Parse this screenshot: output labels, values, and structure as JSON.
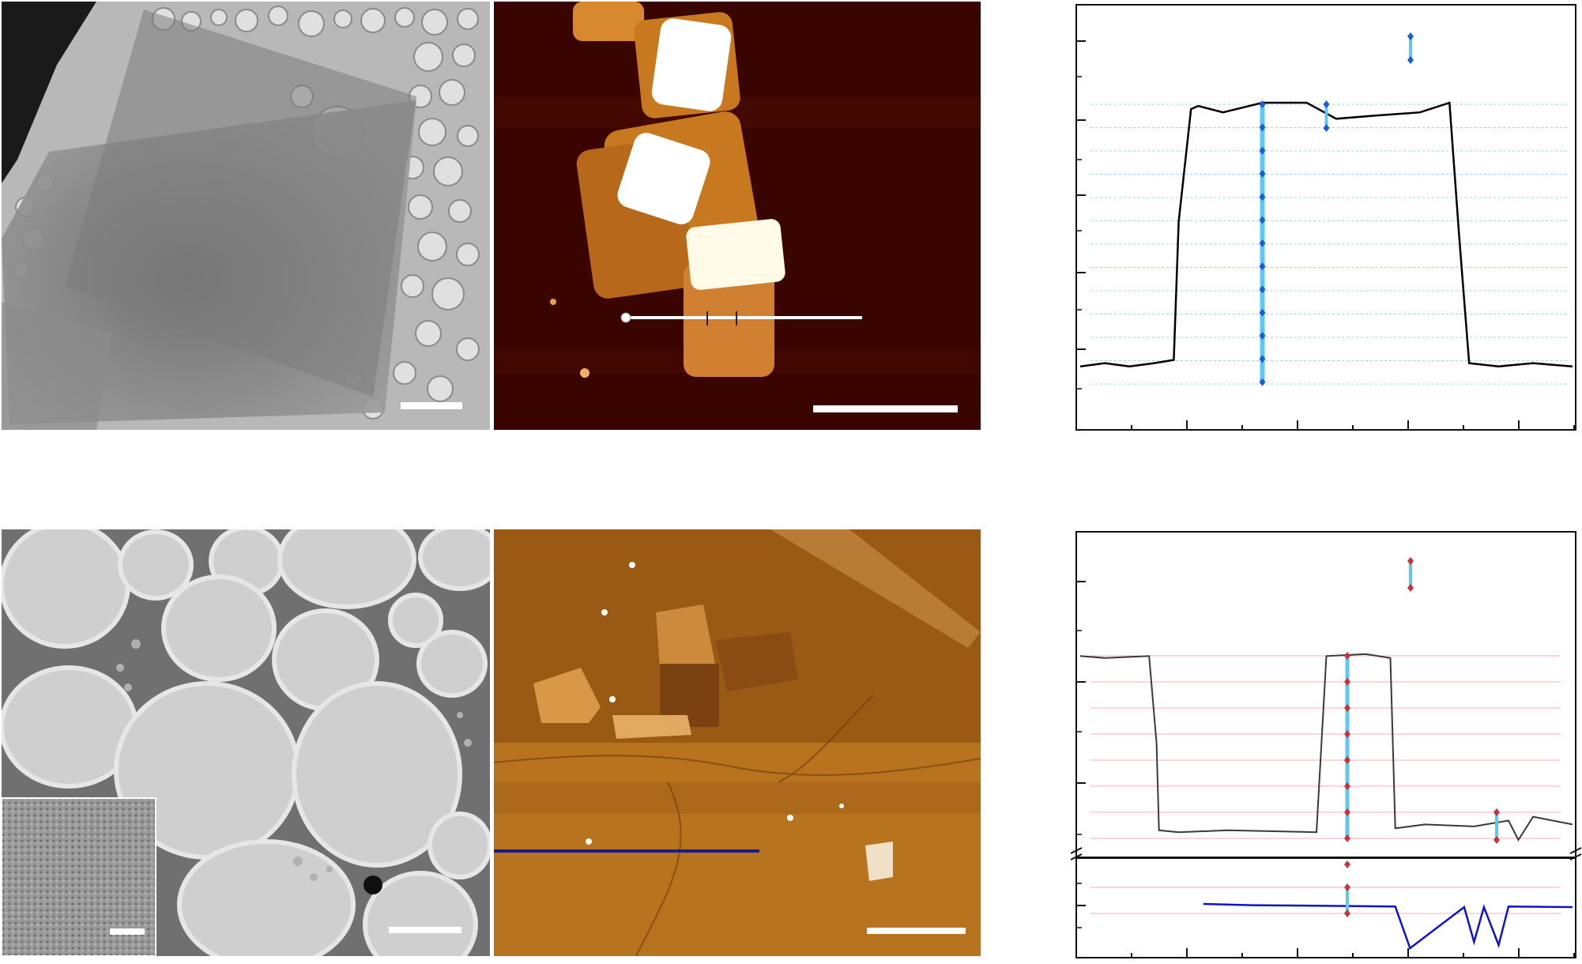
{
  "figure": {
    "panels": [
      {
        "id": "tem-top",
        "kind": "TEM micrograph",
        "scale_bar": true
      },
      {
        "id": "afm-top",
        "kind": "AFM height image",
        "scale_bar": true,
        "line_profile_marker": true
      },
      {
        "id": "plot-top",
        "kind": "height profile"
      },
      {
        "id": "tem-bottom",
        "kind": "TEM micrograph",
        "scale_bar": true,
        "inset_scale_bar": true
      },
      {
        "id": "afm-bottom",
        "kind": "AFM height image",
        "scale_bar": true,
        "line_profile_marker": true
      },
      {
        "id": "plot-bottom",
        "kind": "height profile with broken axis"
      }
    ]
  },
  "colors": {
    "afm_top_bg": "#3a0500",
    "afm_bottom_bg": "#b36d1c",
    "profile_top_line": "#000000",
    "profile_top_marker": "#1e5bd8",
    "profile_top_bar": "#5ec8f0",
    "profile_bottom_line": "#3a3a3a",
    "profile_bottom_line2": "#1212c8",
    "profile_bottom_marker": "#c8323c",
    "gridline_top": "#9ed4ee",
    "gridline_bottom": "#f0b0b6",
    "scale_bar": "#ffffff",
    "afm_bottom_line": "#1a1a8c"
  },
  "chart_data": [
    {
      "type": "line",
      "xlabel": "",
      "ylabel": "",
      "grid": true,
      "series": [
        {
          "values": [
            [
              0,
              0.05
            ],
            [
              0.05,
              0.06
            ],
            [
              0.1,
              0.05
            ],
            [
              0.15,
              0.06
            ],
            [
              0.19,
              0.07
            ],
            [
              0.2,
              0.5
            ],
            [
              0.225,
              0.85
            ],
            [
              0.24,
              0.86
            ],
            [
              0.29,
              0.84
            ],
            [
              0.37,
              0.87
            ],
            [
              0.46,
              0.87
            ],
            [
              0.52,
              0.82
            ],
            [
              0.6,
              0.83
            ],
            [
              0.69,
              0.84
            ],
            [
              0.75,
              0.87
            ],
            [
              0.77,
              0.45
            ],
            [
              0.79,
              0.06
            ],
            [
              0.85,
              0.05
            ],
            [
              0.92,
              0.06
            ],
            [
              1.0,
              0.05
            ]
          ]
        }
      ],
      "step_markers": [
        {
          "x": 0.37,
          "steps": 12
        },
        {
          "x": 0.5,
          "steps": 1
        },
        {
          "x": 0.67,
          "steps": 1
        }
      ]
    },
    {
      "type": "line",
      "xlabel": "",
      "ylabel": "",
      "grid": true,
      "broken_axis": true,
      "series": [
        {
          "values": [
            [
              0,
              0.95
            ],
            [
              0.05,
              0.94
            ],
            [
              0.14,
              0.95
            ],
            [
              0.155,
              0.5
            ],
            [
              0.16,
              0.05
            ],
            [
              0.2,
              0.04
            ],
            [
              0.3,
              0.05
            ],
            [
              0.48,
              0.04
            ],
            [
              0.5,
              0.95
            ],
            [
              0.58,
              0.96
            ],
            [
              0.63,
              0.94
            ],
            [
              0.64,
              0.06
            ],
            [
              0.7,
              0.08
            ],
            [
              0.8,
              0.07
            ],
            [
              0.87,
              0.1
            ],
            [
              0.89,
              0.0
            ],
            [
              0.92,
              0.12
            ],
            [
              1.0,
              0.08
            ]
          ]
        },
        {
          "values": [
            [
              0.25,
              0.8
            ],
            [
              0.35,
              0.78
            ],
            [
              0.5,
              0.77
            ],
            [
              0.64,
              0.76
            ],
            [
              0.67,
              0.1
            ],
            [
              0.78,
              0.75
            ],
            [
              0.8,
              0.2
            ],
            [
              0.82,
              0.75
            ],
            [
              0.85,
              0.15
            ],
            [
              0.87,
              0.76
            ],
            [
              1.0,
              0.75
            ]
          ]
        }
      ],
      "step_markers": [
        {
          "x": 0.54,
          "steps": 8
        },
        {
          "x": 0.68,
          "steps": 1
        },
        {
          "x": 0.87,
          "steps": 1
        }
      ]
    }
  ]
}
